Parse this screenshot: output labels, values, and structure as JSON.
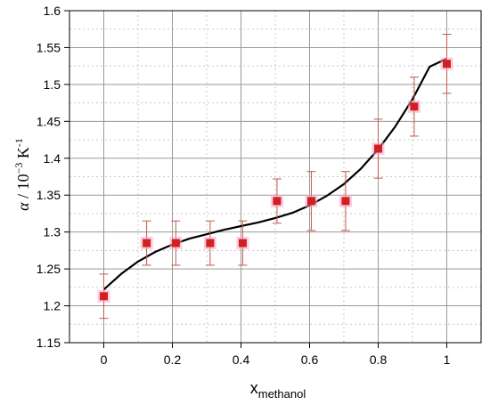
{
  "chart_data": {
    "type": "scatter",
    "title": "",
    "xlabel": {
      "main": "x",
      "sub": "methanol"
    },
    "ylabel": {
      "symbol": "α",
      "rest": " / 10",
      "exp1": "−3",
      "unit": " K",
      "exp2": "-1"
    },
    "xlim": [
      -0.1,
      1.1
    ],
    "ylim": [
      1.15,
      1.6
    ],
    "x_ticks": [
      0,
      0.2,
      0.4,
      0.6,
      0.8,
      1
    ],
    "x_tick_labels": [
      "0",
      "0.2",
      "0.4",
      "0.6",
      "0.8",
      "1"
    ],
    "y_ticks": [
      1.15,
      1.2,
      1.25,
      1.3,
      1.35,
      1.4,
      1.45,
      1.5,
      1.55,
      1.6
    ],
    "y_tick_labels": [
      "1.15",
      "1.2",
      "1.25",
      "1.3",
      "1.35",
      "1.4",
      "1.45",
      "1.5",
      "1.55",
      "1.6"
    ],
    "grid": true,
    "points": {
      "x": [
        0,
        0.125,
        0.21,
        0.31,
        0.405,
        0.505,
        0.605,
        0.705,
        0.8,
        0.905,
        1.0
      ],
      "y": [
        1.213,
        1.285,
        1.285,
        1.285,
        1.285,
        1.342,
        1.342,
        1.342,
        1.413,
        1.47,
        1.528
      ],
      "err_low": [
        0.03,
        0.03,
        0.03,
        0.03,
        0.03,
        0.03,
        0.04,
        0.04,
        0.04,
        0.04,
        0.04
      ],
      "err_high": [
        0.03,
        0.03,
        0.03,
        0.03,
        0.03,
        0.03,
        0.04,
        0.04,
        0.04,
        0.04,
        0.04
      ]
    },
    "fit_curve": {
      "x": [
        0,
        0.05,
        0.1,
        0.15,
        0.2,
        0.25,
        0.3,
        0.35,
        0.4,
        0.45,
        0.5,
        0.55,
        0.6,
        0.65,
        0.7,
        0.75,
        0.8,
        0.85,
        0.9,
        0.95,
        1.0
      ],
      "y": [
        1.222,
        1.243,
        1.26,
        1.273,
        1.283,
        1.291,
        1.297,
        1.303,
        1.308,
        1.313,
        1.319,
        1.326,
        1.336,
        1.349,
        1.365,
        1.386,
        1.412,
        1.443,
        1.48,
        1.524,
        1.535
      ]
    },
    "colors": {
      "marker": "#d21f1f",
      "error_bar": "#c25a4a",
      "marker_glow": "#f4a6c8",
      "fit": "#000000",
      "grid_major": "#999999",
      "grid_minor": "#c8c8c8"
    }
  }
}
